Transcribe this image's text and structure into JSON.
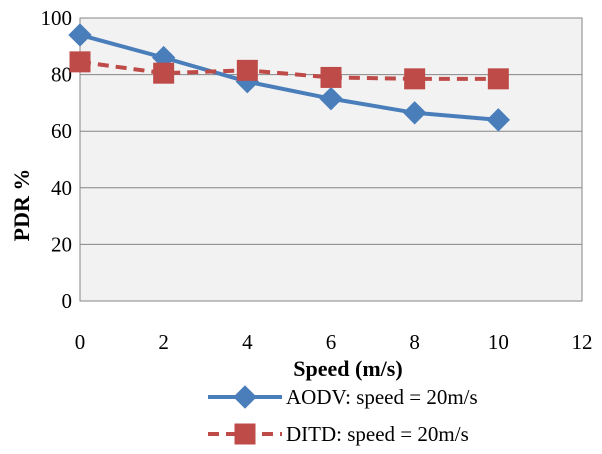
{
  "chart_data": {
    "type": "line",
    "title": "",
    "xlabel": "Speed (m/s)",
    "ylabel": "PDR %",
    "xlim": [
      0,
      12
    ],
    "ylim": [
      0,
      100
    ],
    "xticks": [
      0,
      2,
      4,
      6,
      8,
      10,
      12
    ],
    "yticks": [
      0,
      20,
      40,
      60,
      80,
      100
    ],
    "grid": "horizontal",
    "plot_background": "#F2F2F2",
    "legend_position": "bottom-right",
    "series": [
      {
        "name": "AODV: speed = 20m/s",
        "color": "#4A7EBB",
        "line_style": "solid",
        "marker": "diamond",
        "x": [
          0,
          2,
          4,
          6,
          8,
          10
        ],
        "y": [
          94,
          86,
          77.5,
          71.5,
          66.5,
          64
        ]
      },
      {
        "name": "DITD: speed = 20m/s",
        "color": "#BE4B48",
        "line_style": "dashed",
        "marker": "square",
        "x": [
          0,
          2,
          4,
          6,
          8,
          10
        ],
        "y": [
          84.5,
          80.5,
          81.5,
          79,
          78.5,
          78.5
        ]
      }
    ]
  }
}
